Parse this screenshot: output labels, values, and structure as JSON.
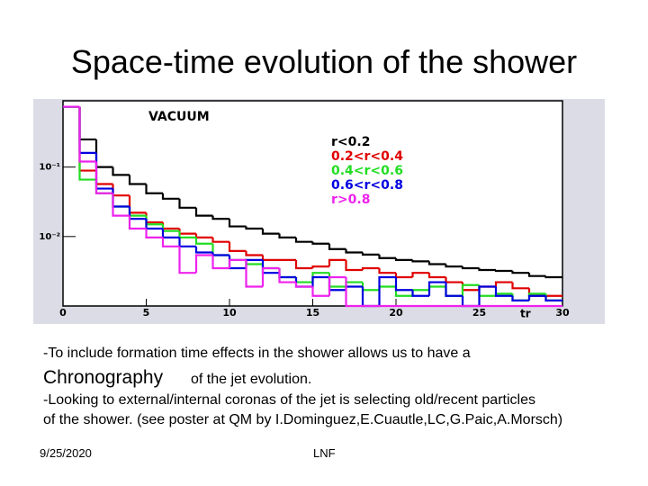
{
  "title": "Space-time evolution of the shower",
  "chart_data": {
    "type": "step-histogram",
    "log_y": true,
    "annotation": "VACUUM",
    "x_label": "tr",
    "bins": [
      0,
      1,
      2,
      3,
      4,
      5,
      6,
      7,
      8,
      9,
      10,
      11,
      12,
      13,
      14,
      15,
      16,
      17,
      18,
      19,
      20,
      21,
      22,
      23,
      24,
      25,
      26,
      27,
      28,
      29,
      30
    ],
    "xlim": [
      0,
      30
    ],
    "xticks": [
      0,
      5,
      10,
      15,
      20,
      25,
      30
    ],
    "ylim": [
      0.001,
      0.9
    ],
    "yticks": [
      {
        "value": 0.01,
        "label": "10⁻²"
      },
      {
        "value": 0.1,
        "label": "10⁻¹"
      }
    ],
    "series": [
      {
        "name": "r<0.2",
        "color": "#000000",
        "values": [
          0.74,
          0.25,
          0.1,
          0.077,
          0.057,
          0.042,
          0.035,
          0.026,
          0.02,
          0.018,
          0.014,
          0.013,
          0.011,
          0.0097,
          0.0084,
          0.0079,
          0.0066,
          0.0059,
          0.0055,
          0.0049,
          0.0046,
          0.0044,
          0.004,
          0.0037,
          0.0035,
          0.0033,
          0.0032,
          0.003,
          0.0027,
          0.0026
        ]
      },
      {
        "name": "0.2<r<0.4",
        "color": "#e00000",
        "values": [
          0.74,
          0.089,
          0.057,
          0.039,
          0.022,
          0.016,
          0.013,
          0.011,
          0.0097,
          0.0084,
          0.0062,
          0.0054,
          0.0046,
          0.0046,
          0.0035,
          0.0037,
          0.0046,
          0.0033,
          0.0035,
          0.003,
          0.0026,
          0.003,
          0.0026,
          0.0022,
          0.0017,
          0.0019,
          0.0022,
          0.0018,
          0.0014,
          0.0014
        ]
      },
      {
        "name": "0.4<r<0.6",
        "color": "#22dd22",
        "values": [
          0.74,
          0.066,
          0.042,
          0.027,
          0.02,
          0.015,
          0.012,
          0.0097,
          0.0079,
          0.0054,
          0.0046,
          0.004,
          0.0035,
          0.0026,
          0.0022,
          0.003,
          0.0019,
          0.0022,
          0.0017,
          0.0019,
          0.0014,
          0.0017,
          0.0019,
          0.0014,
          0.002,
          0.0014,
          0.0015,
          0.0012,
          0.0015,
          0.0012
        ]
      },
      {
        "name": "0.6<r<0.8",
        "color": "#0000e0",
        "values": [
          0.74,
          0.16,
          0.049,
          0.027,
          0.018,
          0.013,
          0.0097,
          0.0072,
          0.0059,
          0.0054,
          0.0035,
          0.0046,
          0.003,
          0.0026,
          0.0019,
          0.0026,
          0.0017,
          0.0019,
          0.001,
          0.0026,
          0.0017,
          0.0014,
          0.0022,
          0.0014,
          0.001,
          0.0019,
          0.0014,
          0.0012,
          0.0014,
          0.0012
        ]
      },
      {
        "name": "r>0.8",
        "color": "#ee22ee",
        "values": [
          0.74,
          0.12,
          0.042,
          0.02,
          0.013,
          0.0097,
          0.0072,
          0.003,
          0.0054,
          0.0035,
          0.0046,
          0.0019,
          0.0035,
          0.0022,
          0.0019,
          0.0014,
          0.0026,
          0.001,
          0.001,
          0.001,
          0.001,
          0.001,
          0.001,
          0.001,
          0.001,
          0.001,
          0.001,
          0.001,
          0.001,
          0.001
        ]
      }
    ]
  },
  "text": {
    "line1": "-To include formation time effects in the shower allows us to have a",
    "big": "Chronography",
    "line2": "of the jet evolution.",
    "line3": "-Looking to external/internal coronas of the jet is selecting old/recent particles",
    "line4": "of the shower. (see poster at QM by I.Dominguez,E.Cuautle,LC,G.Paic,A.Morsch)"
  },
  "footer": {
    "date": "9/25/2020",
    "center": "LNF"
  }
}
